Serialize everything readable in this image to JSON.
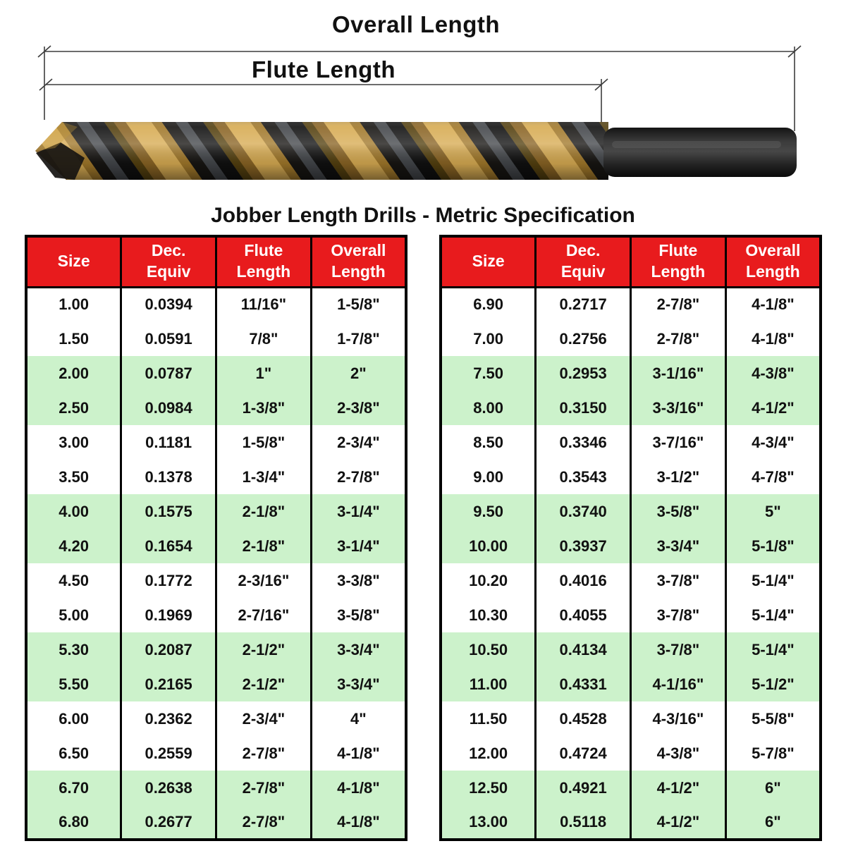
{
  "diagram": {
    "overall_label": "Overall Length",
    "flute_label": "Flute Length"
  },
  "table_title": "Jobber Length Drills - Metric Specification",
  "columns": [
    "Size",
    "Dec.\nEquiv",
    "Flute\nLength",
    "Overall\nLength"
  ],
  "tables": {
    "left": {
      "rows": [
        [
          "1.00",
          "0.0394",
          "11/16\"",
          "1-5/8\""
        ],
        [
          "1.50",
          "0.0591",
          "7/8\"",
          "1-7/8\""
        ],
        [
          "2.00",
          "0.0787",
          "1\"",
          "2\""
        ],
        [
          "2.50",
          "0.0984",
          "1-3/8\"",
          "2-3/8\""
        ],
        [
          "3.00",
          "0.1181",
          "1-5/8\"",
          "2-3/4\""
        ],
        [
          "3.50",
          "0.1378",
          "1-3/4\"",
          "2-7/8\""
        ],
        [
          "4.00",
          "0.1575",
          "2-1/8\"",
          "3-1/4\""
        ],
        [
          "4.20",
          "0.1654",
          "2-1/8\"",
          "3-1/4\""
        ],
        [
          "4.50",
          "0.1772",
          "2-3/16\"",
          "3-3/8\""
        ],
        [
          "5.00",
          "0.1969",
          "2-7/16\"",
          "3-5/8\""
        ],
        [
          "5.30",
          "0.2087",
          "2-1/2\"",
          "3-3/4\""
        ],
        [
          "5.50",
          "0.2165",
          "2-1/2\"",
          "3-3/4\""
        ],
        [
          "6.00",
          "0.2362",
          "2-3/4\"",
          "4\""
        ],
        [
          "6.50",
          "0.2559",
          "2-7/8\"",
          "4-1/8\""
        ],
        [
          "6.70",
          "0.2638",
          "2-7/8\"",
          "4-1/8\""
        ],
        [
          "6.80",
          "0.2677",
          "2-7/8\"",
          "4-1/8\""
        ]
      ]
    },
    "right": {
      "rows": [
        [
          "6.90",
          "0.2717",
          "2-7/8\"",
          "4-1/8\""
        ],
        [
          "7.00",
          "0.2756",
          "2-7/8\"",
          "4-1/8\""
        ],
        [
          "7.50",
          "0.2953",
          "3-1/16\"",
          "4-3/8\""
        ],
        [
          "8.00",
          "0.3150",
          "3-3/16\"",
          "4-1/2\""
        ],
        [
          "8.50",
          "0.3346",
          "3-7/16\"",
          "4-3/4\""
        ],
        [
          "9.00",
          "0.3543",
          "3-1/2\"",
          "4-7/8\""
        ],
        [
          "9.50",
          "0.3740",
          "3-5/8\"",
          "5\""
        ],
        [
          "10.00",
          "0.3937",
          "3-3/4\"",
          "5-1/8\""
        ],
        [
          "10.20",
          "0.4016",
          "3-7/8\"",
          "5-1/4\""
        ],
        [
          "10.30",
          "0.4055",
          "3-7/8\"",
          "5-1/4\""
        ],
        [
          "10.50",
          "0.4134",
          "3-7/8\"",
          "5-1/4\""
        ],
        [
          "11.00",
          "0.4331",
          "4-1/16\"",
          "5-1/2\""
        ],
        [
          "11.50",
          "0.4528",
          "4-3/16\"",
          "5-5/8\""
        ],
        [
          "12.00",
          "0.4724",
          "4-3/8\"",
          "5-7/8\""
        ],
        [
          "12.50",
          "0.4921",
          "4-1/2\"",
          "6\""
        ],
        [
          "13.00",
          "0.5118",
          "4-1/2\"",
          "6\""
        ]
      ]
    }
  },
  "colors": {
    "header_bg": "#e81b1d",
    "header_text": "#ffffff",
    "row_green": "#ccf2cb",
    "row_white": "#ffffff",
    "border": "#000000",
    "drill_gold": "#c79a3b",
    "drill_dark": "#1a1a1a"
  }
}
